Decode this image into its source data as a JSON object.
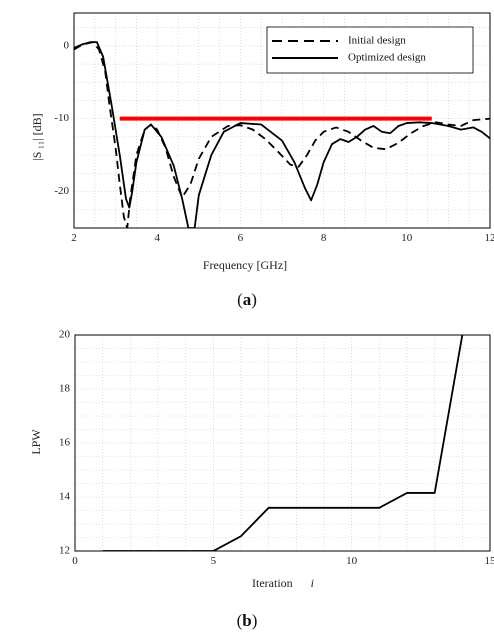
{
  "chart_data": [
    {
      "type": "line",
      "panel": "(a)",
      "panel_label": "(",
      "panel_letter": "a",
      "panel_close": ")",
      "xlabel": "Frequency [GHz]",
      "ylabel": "|S ₁₁| [dB]",
      "xlim": [
        2,
        12
      ],
      "ylim": [
        -25,
        4.5
      ],
      "xticks": [
        2,
        4,
        6,
        8,
        10,
        12
      ],
      "yticks": [
        0,
        -10,
        -20
      ],
      "grid": true,
      "legend_position": "top-right",
      "series": [
        {
          "name": "Initial design",
          "style": "dashed",
          "color": "#000000",
          "x": [
            2.0,
            2.15,
            2.3,
            2.45,
            2.6,
            2.75,
            2.85,
            3.0,
            3.1,
            3.2,
            3.28,
            3.35,
            3.5,
            3.7,
            3.85,
            4.0,
            4.2,
            4.4,
            4.6,
            4.8,
            5.0,
            5.3,
            5.7,
            6.0,
            6.3,
            6.6,
            6.9,
            7.2,
            7.4,
            7.6,
            7.8,
            8.0,
            8.3,
            8.6,
            8.9,
            9.2,
            9.5,
            9.8,
            10.1,
            10.4,
            10.7,
            11.0,
            11.3,
            11.6,
            12.0
          ],
          "y": [
            -0.5,
            0.0,
            0.3,
            0.5,
            -0.5,
            -3.5,
            -8.0,
            -14.0,
            -19.0,
            -23.5,
            -25.0,
            -21.0,
            -15.0,
            -11.5,
            -10.8,
            -11.5,
            -14.0,
            -18.0,
            -20.8,
            -19.0,
            -15.5,
            -12.5,
            -11.0,
            -10.9,
            -11.5,
            -12.8,
            -14.5,
            -16.3,
            -16.6,
            -15.0,
            -13.0,
            -11.8,
            -11.2,
            -11.8,
            -13.0,
            -14.0,
            -14.2,
            -13.3,
            -12.0,
            -11.0,
            -10.5,
            -10.8,
            -11.0,
            -10.2,
            -10.0
          ]
        },
        {
          "name": "Optimized design",
          "style": "solid",
          "color": "#000000",
          "x": [
            2.0,
            2.2,
            2.4,
            2.55,
            2.7,
            2.9,
            3.1,
            3.25,
            3.33,
            3.4,
            3.5,
            3.7,
            3.85,
            4.1,
            4.4,
            4.6,
            4.75,
            4.9,
            5.0,
            5.3,
            5.6,
            6.0,
            6.5,
            7.0,
            7.3,
            7.55,
            7.7,
            7.85,
            8.0,
            8.2,
            8.4,
            8.6,
            8.8,
            9.0,
            9.2,
            9.4,
            9.6,
            9.8,
            10.0,
            10.3,
            10.6,
            11.0,
            11.3,
            11.6,
            11.8,
            12.0
          ],
          "y": [
            -0.3,
            0.2,
            0.5,
            0.5,
            -1.5,
            -8.0,
            -15.0,
            -21.0,
            -22.2,
            -20.0,
            -16.0,
            -11.5,
            -10.8,
            -12.5,
            -16.5,
            -21.0,
            -25.0,
            -25.0,
            -20.5,
            -15.0,
            -11.8,
            -10.6,
            -10.8,
            -13.0,
            -16.0,
            -19.5,
            -21.2,
            -19.0,
            -16.0,
            -13.5,
            -12.8,
            -13.2,
            -12.5,
            -11.5,
            -11.0,
            -11.8,
            -12.0,
            -11.0,
            -10.6,
            -10.5,
            -10.6,
            -11.0,
            -11.5,
            -11.2,
            -11.8,
            -12.7
          ]
        },
        {
          "name": "",
          "style": "thick-red",
          "color": "#ff0000",
          "x": [
            3.1,
            10.6
          ],
          "y": [
            -10.0,
            -10.0
          ]
        }
      ],
      "legend_entries": [
        "Initial design",
        "Optimized design"
      ]
    },
    {
      "type": "line",
      "panel": "(b)",
      "panel_label": "(",
      "panel_letter": "b",
      "panel_close": ")",
      "xlabel": "Iteration",
      "xlabel_var": "i",
      "ylabel": "LPW",
      "xlim": [
        0,
        15
      ],
      "ylim": [
        12,
        20
      ],
      "xticks": [
        0,
        5,
        10,
        15
      ],
      "yticks": [
        12,
        14,
        16,
        18,
        20
      ],
      "grid": true,
      "series": [
        {
          "name": "",
          "style": "solid",
          "color": "#000000",
          "x": [
            1,
            2,
            3,
            4,
            5,
            6,
            7,
            8,
            9,
            10,
            11,
            12,
            13,
            14
          ],
          "y": [
            12.0,
            12.0,
            12.0,
            12.0,
            12.0,
            12.55,
            13.6,
            13.6,
            13.6,
            13.6,
            13.6,
            14.15,
            14.15,
            20.0
          ]
        }
      ]
    }
  ]
}
